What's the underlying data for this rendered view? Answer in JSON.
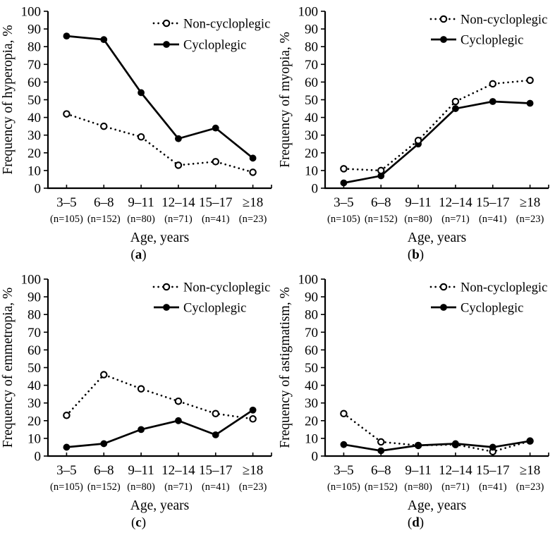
{
  "figure": {
    "background": "#ffffff",
    "line_color": "#000000",
    "text_color": "#000000",
    "caption_parens": [
      "(",
      ")"
    ]
  },
  "legend": {
    "items": [
      {
        "label": "Non-cycloplegic",
        "line": "dotted",
        "marker": "open-circle"
      },
      {
        "label": "Cycloplegic",
        "line": "solid",
        "marker": "filled-circle"
      }
    ],
    "position": "top-right"
  },
  "chart_data": [
    {
      "type": "line",
      "panel_letter": "a",
      "ylabel": "Frequency of hyperopia, %",
      "xlabel": "Age, years",
      "ylim": [
        0,
        100
      ],
      "yticks": [
        0,
        10,
        20,
        30,
        40,
        50,
        60,
        70,
        80,
        90,
        100
      ],
      "categories": [
        "3–5",
        "6–8",
        "9–11",
        "12–14",
        "15–17",
        "≥18"
      ],
      "sample_sizes": [
        "(n=105)",
        "(n=152)",
        "(n=80)",
        "(n=71)",
        "(n=41)",
        "(n=23)"
      ],
      "grid": false,
      "legend_position": "top-right",
      "series": [
        {
          "name": "Non-cycloplegic",
          "line": "dotted",
          "marker": "open-circle",
          "values": [
            42,
            35,
            29,
            13,
            15,
            9
          ]
        },
        {
          "name": "Cycloplegic",
          "line": "solid",
          "marker": "filled-circle",
          "values": [
            86,
            84,
            54,
            28,
            34,
            17
          ]
        }
      ]
    },
    {
      "type": "line",
      "panel_letter": "b",
      "ylabel": "Frequency of myopia, %",
      "xlabel": "Age, years",
      "ylim": [
        0,
        100
      ],
      "yticks": [
        0,
        10,
        20,
        30,
        40,
        50,
        60,
        70,
        80,
        90,
        100
      ],
      "categories": [
        "3–5",
        "6–8",
        "9–11",
        "12–14",
        "15–17",
        "≥18"
      ],
      "sample_sizes": [
        "(n=105)",
        "(n=152)",
        "(n=80)",
        "(n=71)",
        "(n=41)",
        "(n=23)"
      ],
      "grid": false,
      "legend_position": "top-right",
      "series": [
        {
          "name": "Non-cycloplegic",
          "line": "dotted",
          "marker": "open-circle",
          "values": [
            11,
            10,
            27,
            49,
            59,
            61
          ]
        },
        {
          "name": "Cycloplegic",
          "line": "solid",
          "marker": "filled-circle",
          "values": [
            3,
            7,
            25,
            45,
            49,
            48
          ]
        }
      ]
    },
    {
      "type": "line",
      "panel_letter": "c",
      "ylabel": "Frequency of emmetropia, %",
      "xlabel": "Age, years",
      "ylim": [
        0,
        100
      ],
      "yticks": [
        0,
        10,
        20,
        30,
        40,
        50,
        60,
        70,
        80,
        90,
        100
      ],
      "categories": [
        "3–5",
        "6–8",
        "9–11",
        "12–14",
        "15–17",
        "≥18"
      ],
      "sample_sizes": [
        "(n=105)",
        "(n=152)",
        "(n=80)",
        "(n=71)",
        "(n=41)",
        "(n=23)"
      ],
      "grid": false,
      "legend_position": "top-right",
      "series": [
        {
          "name": "Non-cycloplegic",
          "line": "dotted",
          "marker": "open-circle",
          "values": [
            23,
            46,
            38,
            31,
            24,
            21
          ]
        },
        {
          "name": "Cycloplegic",
          "line": "solid",
          "marker": "filled-circle",
          "values": [
            5,
            7,
            15,
            20,
            12,
            26
          ]
        }
      ]
    },
    {
      "type": "line",
      "panel_letter": "d",
      "ylabel": "Frequency of astigmatism, %",
      "xlabel": "Age, years",
      "ylim": [
        0,
        100
      ],
      "yticks": [
        0,
        10,
        20,
        30,
        40,
        50,
        60,
        70,
        80,
        90,
        100
      ],
      "categories": [
        "3–5",
        "6–8",
        "9–11",
        "12–14",
        "15–17",
        "≥18"
      ],
      "sample_sizes": [
        "(n=105)",
        "(n=152)",
        "(n=80)",
        "(n=71)",
        "(n=41)",
        "(n=23)"
      ],
      "grid": false,
      "legend_position": "top-right",
      "series": [
        {
          "name": "Non-cycloplegic",
          "line": "dotted",
          "marker": "open-circle",
          "values": [
            24,
            8,
            6,
            6.5,
            2.5,
            8.5
          ]
        },
        {
          "name": "Cycloplegic",
          "line": "solid",
          "marker": "filled-circle",
          "values": [
            6.5,
            3,
            6,
            7,
            5,
            8.5
          ]
        }
      ]
    }
  ]
}
